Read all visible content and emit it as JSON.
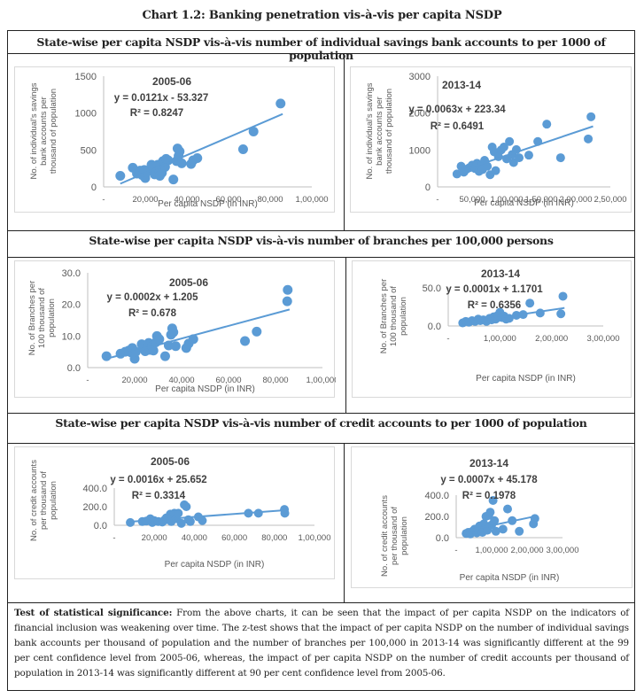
{
  "page_title": "Chart 1.2: Banking penetration vis-à-vis per capita NSDP",
  "sections": [
    {
      "title": "State-wise per capita NSDP vis-à-vis number of individual savings bank accounts to per 1000 of population"
    },
    {
      "title": "State-wise per capita NSDP vis-à-vis number of branches per 100,000 persons"
    },
    {
      "title": "State-wise per capita NSDP vis-à-vis number of credit accounts to per 1000 of population"
    }
  ],
  "note": {
    "lead": "Test of statistical significance:",
    "text": " From the above charts, it can be seen that the impact of per capita NSDP on the indicators of financial inclusion was weakening over time.  The z-test shows that the impact of per capita NSDP on the number of individual savings bank accounts per thousand of population and the number of branches per 100,000 in 2013-14 was significantly different at the 99 per cent confidence level from 2005-06, whereas, the impact of per capita NSDP on the number of credit accounts per thousand of population in 2013-14 was significantly different at 90 per cent confidence level from 2005-06."
  },
  "colors": {
    "marker": "#5b9bd5",
    "trendline": "#5b9bd5",
    "axis": "#bfbfbf",
    "text": "#404040"
  },
  "chart_data": [
    {
      "id": "sb-2005",
      "type": "scatter",
      "title": "2005-06",
      "equation": "y = 0.0121x - 53.327",
      "r2": "R² = 0.8247",
      "xlabel": "Per capita NSDP (in INR)",
      "ylabel": [
        "No. of individual's savings",
        "bank accounts per",
        "thousand of population"
      ],
      "xlim": [
        0,
        100000
      ],
      "ylim": [
        0,
        1500
      ],
      "xticks": [
        0,
        20000,
        40000,
        60000,
        80000,
        100000
      ],
      "xticklabels": [
        "-",
        "20,000",
        "40,000",
        "60,000",
        "80,000",
        "1,00,000"
      ],
      "yticks": [
        0,
        500,
        1000,
        1500
      ],
      "yticklabels": [
        "0",
        "500",
        "1000",
        "1500"
      ],
      "trend": {
        "slope": 0.0121,
        "intercept": -53.327,
        "x_range": [
          8000,
          86000
        ]
      },
      "points": [
        [
          8000,
          150
        ],
        [
          14000,
          260
        ],
        [
          16000,
          180
        ],
        [
          17500,
          220
        ],
        [
          18500,
          160
        ],
        [
          19500,
          230
        ],
        [
          20000,
          120
        ],
        [
          20500,
          200
        ],
        [
          23000,
          300
        ],
        [
          24000,
          260
        ],
        [
          24500,
          170
        ],
        [
          25500,
          200
        ],
        [
          26000,
          300
        ],
        [
          26500,
          230
        ],
        [
          27000,
          150
        ],
        [
          28000,
          190
        ],
        [
          28500,
          350
        ],
        [
          29000,
          330
        ],
        [
          29500,
          270
        ],
        [
          30000,
          380
        ],
        [
          31000,
          360
        ],
        [
          33500,
          100
        ],
        [
          35000,
          350
        ],
        [
          35500,
          520
        ],
        [
          36000,
          420
        ],
        [
          36500,
          480
        ],
        [
          37500,
          320
        ],
        [
          42000,
          310
        ],
        [
          43000,
          360
        ],
        [
          45000,
          390
        ],
        [
          67000,
          510
        ],
        [
          72000,
          750
        ],
        [
          85000,
          1130
        ]
      ]
    },
    {
      "id": "sb-2013",
      "type": "scatter",
      "title": "2013-14",
      "equation": "y = 0.0063x + 223.34",
      "r2": "R² = 0.6491",
      "xlabel": "Per capita NSDP (in INR)",
      "ylabel": [
        "No. of individual's savings",
        "bank accounts per",
        "thousand of population"
      ],
      "xlim": [
        0,
        250000
      ],
      "ylim": [
        0,
        3000
      ],
      "xticks": [
        0,
        50000,
        100000,
        150000,
        200000,
        250000
      ],
      "xticklabels": [
        "-",
        "50,000",
        "1,00,000",
        "1,50,000",
        "2,00,000",
        "2,50,000"
      ],
      "yticks": [
        0,
        1000,
        2000,
        3000
      ],
      "yticklabels": [
        "0",
        "1000",
        "2000",
        "3000"
      ],
      "trend": {
        "slope": 0.0063,
        "intercept": 223.34,
        "x_range": [
          28000,
          225000
        ]
      },
      "points": [
        [
          28000,
          350
        ],
        [
          34000,
          560
        ],
        [
          38000,
          400
        ],
        [
          42000,
          480
        ],
        [
          46000,
          520
        ],
        [
          50000,
          590
        ],
        [
          54000,
          500
        ],
        [
          57000,
          640
        ],
        [
          60000,
          420
        ],
        [
          62000,
          560
        ],
        [
          65000,
          470
        ],
        [
          68000,
          720
        ],
        [
          72000,
          560
        ],
        [
          76000,
          330
        ],
        [
          79000,
          1080
        ],
        [
          82000,
          950
        ],
        [
          84000,
          440
        ],
        [
          88000,
          820
        ],
        [
          92000,
          1000
        ],
        [
          96000,
          1080
        ],
        [
          100000,
          760
        ],
        [
          104000,
          1230
        ],
        [
          108000,
          880
        ],
        [
          110000,
          660
        ],
        [
          114000,
          1010
        ],
        [
          118000,
          790
        ],
        [
          132000,
          860
        ],
        [
          145000,
          1230
        ],
        [
          158000,
          1700
        ],
        [
          178000,
          790
        ],
        [
          218000,
          1300
        ],
        [
          222000,
          1900
        ]
      ]
    },
    {
      "id": "br-2005",
      "type": "scatter",
      "title": "2005-06",
      "equation": "y = 0.0002x + 1.205",
      "r2": "R² = 0.678",
      "xlabel": "Per capita NSDP (in INR)",
      "ylabel": [
        "No. of Branches per",
        "100 thousand of",
        "population"
      ],
      "xlim": [
        0,
        100000
      ],
      "ylim": [
        0,
        30
      ],
      "xticks": [
        0,
        20000,
        40000,
        60000,
        80000,
        100000
      ],
      "xticklabels": [
        "-",
        "20,000",
        "40,000",
        "60,000",
        "80,000",
        "1,00,000"
      ],
      "yticks": [
        0,
        10,
        20,
        30
      ],
      "yticklabels": [
        "0.0",
        "10.0",
        "20.0",
        "30.0"
      ],
      "trend": {
        "slope": 0.0002,
        "intercept": 1.205,
        "x_range": [
          8000,
          86000
        ]
      },
      "points": [
        [
          8000,
          3.6
        ],
        [
          14000,
          4.4
        ],
        [
          16000,
          5.0
        ],
        [
          17500,
          5.4
        ],
        [
          18500,
          4.8
        ],
        [
          19000,
          6.2
        ],
        [
          20000,
          2.8
        ],
        [
          20500,
          5.0
        ],
        [
          23000,
          7.4
        ],
        [
          24000,
          6.0
        ],
        [
          24500,
          5.2
        ],
        [
          25500,
          6.4
        ],
        [
          26000,
          7.8
        ],
        [
          26500,
          5.6
        ],
        [
          27500,
          6.8
        ],
        [
          28000,
          5.4
        ],
        [
          29000,
          8.0
        ],
        [
          29500,
          10.0
        ],
        [
          30500,
          9.0
        ],
        [
          33000,
          3.6
        ],
        [
          34500,
          7.0
        ],
        [
          35500,
          10.4
        ],
        [
          36000,
          12.4
        ],
        [
          36500,
          11.2
        ],
        [
          37500,
          6.8
        ],
        [
          42000,
          6.2
        ],
        [
          43000,
          7.6
        ],
        [
          45000,
          9.0
        ],
        [
          67000,
          8.4
        ],
        [
          72000,
          11.4
        ],
        [
          85000,
          21.0
        ],
        [
          85200,
          24.6
        ]
      ]
    },
    {
      "id": "br-2013",
      "type": "scatter",
      "title": "2013-14",
      "equation": "y = 0.0001x + 1.1701",
      "r2": "R² = 0.6356",
      "xlabel": "Per capita NSDP (in INR)",
      "ylabel": [
        "No. of Branches per",
        "100 thousand of",
        "population"
      ],
      "xlim": [
        0,
        300000
      ],
      "ylim": [
        0,
        50
      ],
      "xticks": [
        0,
        100000,
        200000,
        300000
      ],
      "xticklabels": [
        "-",
        "1,00,000",
        "2,00,000",
        "3,00,000"
      ],
      "yticks": [
        0,
        50
      ],
      "yticklabels": [
        "0.0",
        "50.0"
      ],
      "trend": {
        "slope": 0.0001,
        "intercept": 1.1701,
        "x_range": [
          28000,
          225000
        ]
      },
      "points": [
        [
          28000,
          4
        ],
        [
          34000,
          6
        ],
        [
          40000,
          5
        ],
        [
          46000,
          7
        ],
        [
          52000,
          6
        ],
        [
          58000,
          9
        ],
        [
          62000,
          7
        ],
        [
          68000,
          8
        ],
        [
          74000,
          6
        ],
        [
          80000,
          10
        ],
        [
          84000,
          8
        ],
        [
          88000,
          12
        ],
        [
          92000,
          9
        ],
        [
          96000,
          14
        ],
        [
          100000,
          18
        ],
        [
          104000,
          11
        ],
        [
          108000,
          13
        ],
        [
          112000,
          9
        ],
        [
          118000,
          10
        ],
        [
          132000,
          14
        ],
        [
          145000,
          15
        ],
        [
          158000,
          30
        ],
        [
          178000,
          17
        ],
        [
          218000,
          16
        ],
        [
          222000,
          39
        ]
      ]
    },
    {
      "id": "cr-2005",
      "type": "scatter",
      "title": "2005-06",
      "equation": "y = 0.0016x + 25.652",
      "r2": "R² = 0.3314",
      "xlabel": "Per capita NSDP (in INR)",
      "ylabel": [
        "No. of credit  accounts",
        "per thousand of",
        "population"
      ],
      "xlim": [
        0,
        100000
      ],
      "ylim": [
        0,
        400
      ],
      "xticks": [
        0,
        20000,
        40000,
        60000,
        80000,
        100000
      ],
      "xticklabels": [
        "-",
        "20,000",
        "40,000",
        "60,000",
        "80,000",
        "1,00,000"
      ],
      "yticks": [
        0,
        200,
        400
      ],
      "yticklabels": [
        "0.0",
        "200.0",
        "400.0"
      ],
      "trend": {
        "slope": 0.0016,
        "intercept": 25.652,
        "x_range": [
          8000,
          86000
        ]
      },
      "points": [
        [
          8000,
          30
        ],
        [
          14000,
          40
        ],
        [
          16000,
          45
        ],
        [
          18000,
          70
        ],
        [
          19000,
          30
        ],
        [
          20000,
          50
        ],
        [
          22000,
          40
        ],
        [
          24000,
          35
        ],
        [
          25000,
          55
        ],
        [
          26000,
          80
        ],
        [
          27000,
          60
        ],
        [
          28000,
          120
        ],
        [
          28500,
          40
        ],
        [
          29000,
          90
        ],
        [
          30000,
          130
        ],
        [
          31000,
          70
        ],
        [
          32000,
          130
        ],
        [
          33500,
          20
        ],
        [
          35000,
          220
        ],
        [
          36000,
          200
        ],
        [
          37000,
          60
        ],
        [
          38000,
          40
        ],
        [
          42000,
          90
        ],
        [
          44000,
          50
        ],
        [
          67000,
          130
        ],
        [
          72000,
          130
        ],
        [
          85000,
          170
        ],
        [
          85200,
          130
        ]
      ]
    },
    {
      "id": "cr-2013",
      "type": "scatter",
      "title": "2013-14",
      "equation": "y = 0.0007x + 45.178",
      "r2": "R² = 0.1978",
      "xlabel": "Per capita NSDP (in INR)",
      "ylabel": [
        "No. of credit  accounts",
        "per thousand of",
        "population"
      ],
      "xlim": [
        0,
        300000
      ],
      "ylim": [
        0,
        400
      ],
      "xticks": [
        0,
        100000,
        200000,
        300000
      ],
      "xticklabels": [
        "-",
        "1,00,000",
        "2,00,000",
        "3,00,000"
      ],
      "yticks": [
        0,
        200,
        400
      ],
      "yticklabels": [
        "0.0",
        "200.0",
        "400.0"
      ],
      "trend": {
        "slope": 0.0007,
        "intercept": 45.178,
        "x_range": [
          28000,
          225000
        ]
      },
      "points": [
        [
          28000,
          40
        ],
        [
          34000,
          50
        ],
        [
          40000,
          35
        ],
        [
          46000,
          60
        ],
        [
          52000,
          80
        ],
        [
          58000,
          45
        ],
        [
          62000,
          70
        ],
        [
          66000,
          110
        ],
        [
          70000,
          60
        ],
        [
          74000,
          50
        ],
        [
          78000,
          130
        ],
        [
          82000,
          90
        ],
        [
          84000,
          200
        ],
        [
          88000,
          70
        ],
        [
          92000,
          210
        ],
        [
          96000,
          240
        ],
        [
          100000,
          120
        ],
        [
          104000,
          350
        ],
        [
          108000,
          160
        ],
        [
          112000,
          60
        ],
        [
          132000,
          80
        ],
        [
          145000,
          270
        ],
        [
          158000,
          160
        ],
        [
          178000,
          60
        ],
        [
          218000,
          130
        ],
        [
          222000,
          180
        ]
      ]
    }
  ]
}
